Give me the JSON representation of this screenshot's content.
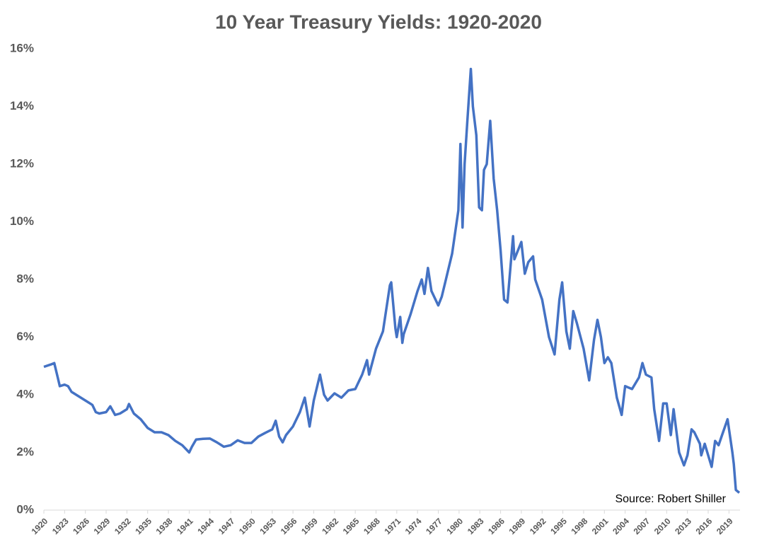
{
  "chart_data": {
    "type": "line",
    "title": "10 Year Treasury Yields: 1920-2020",
    "annotation": "Source: Robert Shiller",
    "color": "#4472c4",
    "xlim": [
      1920,
      2020.6
    ],
    "xticks": [
      1920,
      1923,
      1926,
      1929,
      1932,
      1935,
      1938,
      1941,
      1944,
      1947,
      1950,
      1953,
      1956,
      1959,
      1962,
      1965,
      1968,
      1971,
      1974,
      1977,
      1980,
      1983,
      1986,
      1989,
      1992,
      1995,
      1998,
      2001,
      2004,
      2007,
      2010,
      2013,
      2016,
      2019
    ],
    "ylim": [
      0,
      16
    ],
    "yticks": [
      {
        "value": 0,
        "label": "0%"
      },
      {
        "value": 2,
        "label": "2%"
      },
      {
        "value": 4,
        "label": "4%"
      },
      {
        "value": 6,
        "label": "6%"
      },
      {
        "value": 8,
        "label": "8%"
      },
      {
        "value": 10,
        "label": "10%"
      },
      {
        "value": 12,
        "label": "12%"
      },
      {
        "value": 14,
        "label": "14%"
      },
      {
        "value": 16,
        "label": "16%"
      }
    ],
    "grid": false,
    "x": [
      1920,
      1921,
      1921.5,
      1922,
      1922.3,
      1923,
      1923.5,
      1924,
      1925,
      1926,
      1927,
      1927.5,
      1928,
      1929,
      1929.6,
      1930.3,
      1931,
      1932,
      1932.3,
      1933,
      1934,
      1935,
      1936,
      1937,
      1938,
      1939,
      1940,
      1941,
      1941.4,
      1942,
      1943,
      1944,
      1945,
      1946,
      1947,
      1948,
      1949,
      1950,
      1951,
      1952,
      1953,
      1953.5,
      1954,
      1954.5,
      1955,
      1956,
      1957,
      1957.7,
      1958.4,
      1959,
      1959.9,
      1960.5,
      1961,
      1962,
      1963,
      1964,
      1965,
      1966,
      1966.7,
      1967,
      1968,
      1969,
      1970,
      1970.2,
      1970.8,
      1971,
      1971.5,
      1971.8,
      1972,
      1973,
      1974,
      1974.6,
      1975,
      1975.5,
      1976,
      1977,
      1977.5,
      1978,
      1979,
      1979.9,
      1980.2,
      1980.5,
      1980.8,
      1981.2,
      1981.7,
      1982,
      1982.5,
      1982.9,
      1983.3,
      1983.6,
      1984,
      1984.5,
      1985,
      1985.5,
      1986,
      1986.5,
      1987,
      1987.8,
      1988,
      1989,
      1989.5,
      1990,
      1990.7,
      1991,
      1992,
      1993,
      1993.8,
      1994.5,
      1994.9,
      1995.5,
      1996,
      1996.5,
      1997,
      1998,
      1998.8,
      1999.5,
      2000,
      2000.5,
      2001,
      2001.5,
      2002,
      2002.8,
      2003.5,
      2004,
      2005,
      2006,
      2006.5,
      2007,
      2007.8,
      2008.2,
      2008.9,
      2009.5,
      2010,
      2010.6,
      2011,
      2011.8,
      2012.5,
      2013,
      2013.6,
      2014,
      2014.8,
      2015,
      2015.5,
      2016.5,
      2017,
      2017.5,
      2018,
      2018.8,
      2019.5,
      2019.7,
      2020,
      2020.5
    ],
    "series": [
      {
        "name": "10 Year Treasury Yield",
        "color": "#4472c4",
        "values": [
          4.97,
          5.05,
          5.1,
          4.6,
          4.3,
          4.35,
          4.3,
          4.1,
          3.95,
          3.8,
          3.65,
          3.4,
          3.35,
          3.4,
          3.6,
          3.3,
          3.35,
          3.5,
          3.68,
          3.35,
          3.15,
          2.85,
          2.7,
          2.7,
          2.6,
          2.4,
          2.25,
          2.0,
          2.2,
          2.45,
          2.47,
          2.48,
          2.35,
          2.2,
          2.25,
          2.42,
          2.33,
          2.33,
          2.55,
          2.68,
          2.8,
          3.1,
          2.55,
          2.35,
          2.6,
          2.9,
          3.4,
          3.9,
          2.9,
          3.8,
          4.7,
          4.0,
          3.8,
          4.05,
          3.9,
          4.15,
          4.2,
          4.7,
          5.2,
          4.7,
          5.6,
          6.2,
          7.8,
          7.9,
          6.3,
          6.0,
          6.7,
          5.8,
          6.1,
          6.8,
          7.6,
          8.0,
          7.5,
          8.4,
          7.6,
          7.1,
          7.4,
          7.9,
          8.9,
          10.4,
          12.7,
          9.8,
          12.0,
          13.5,
          15.3,
          14.0,
          13.0,
          10.5,
          10.4,
          11.8,
          12.0,
          13.5,
          11.5,
          10.4,
          9.0,
          7.3,
          7.2,
          9.5,
          8.7,
          9.3,
          8.2,
          8.6,
          8.8,
          8.0,
          7.3,
          6.0,
          5.4,
          7.3,
          7.9,
          6.2,
          5.6,
          6.9,
          6.5,
          5.6,
          4.5,
          5.9,
          6.6,
          6.0,
          5.1,
          5.3,
          5.1,
          3.9,
          3.3,
          4.3,
          4.2,
          4.6,
          5.1,
          4.7,
          4.6,
          3.5,
          2.4,
          3.7,
          3.7,
          2.6,
          3.5,
          2.0,
          1.55,
          1.9,
          2.8,
          2.7,
          2.3,
          1.9,
          2.3,
          1.5,
          2.4,
          2.25,
          2.6,
          3.15,
          2.0,
          1.6,
          0.7,
          0.6
        ]
      }
    ]
  }
}
